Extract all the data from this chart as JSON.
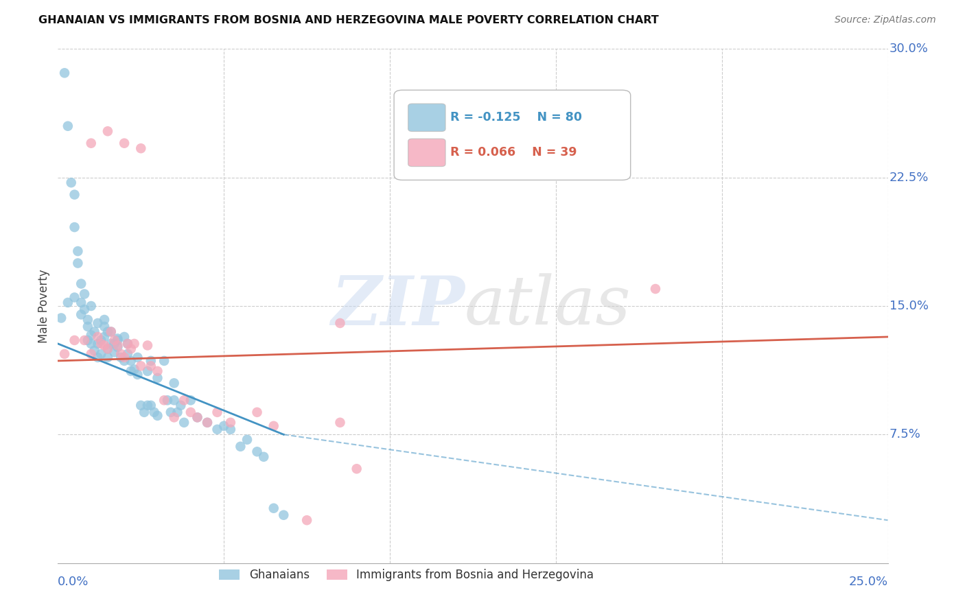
{
  "title": "GHANAIAN VS IMMIGRANTS FROM BOSNIA AND HERZEGOVINA MALE POVERTY CORRELATION CHART",
  "source": "Source: ZipAtlas.com",
  "ylabel": "Male Poverty",
  "xlim": [
    0.0,
    0.25
  ],
  "ylim": [
    0.0,
    0.3
  ],
  "yticks": [
    0.075,
    0.15,
    0.225,
    0.3
  ],
  "ytick_labels": [
    "7.5%",
    "15.0%",
    "22.5%",
    "30.0%"
  ],
  "series1_label": "Ghanaians",
  "series1_R": -0.125,
  "series1_N": 80,
  "series1_color": "#92c5de",
  "series1_line_color": "#4393c3",
  "series2_label": "Immigrants from Bosnia and Herzegovina",
  "series2_R": 0.066,
  "series2_N": 39,
  "series2_color": "#f4a7b9",
  "series2_line_color": "#d6604d",
  "watermark_zip": "ZIP",
  "watermark_atlas": "atlas",
  "background_color": "#ffffff",
  "grid_color": "#cccccc",
  "tick_label_color": "#4472c4",
  "blue_line_solid_end": 0.068,
  "blue_line_start_y": 0.128,
  "blue_line_end_solid_y": 0.075,
  "blue_line_end_dash_y": 0.025,
  "pink_line_start_y": 0.118,
  "pink_line_end_y": 0.132,
  "scatter1_x": [
    0.001,
    0.002,
    0.003,
    0.004,
    0.005,
    0.005,
    0.006,
    0.006,
    0.007,
    0.007,
    0.008,
    0.008,
    0.009,
    0.009,
    0.01,
    0.01,
    0.01,
    0.011,
    0.011,
    0.012,
    0.012,
    0.013,
    0.013,
    0.014,
    0.014,
    0.014,
    0.015,
    0.015,
    0.016,
    0.016,
    0.017,
    0.017,
    0.018,
    0.018,
    0.019,
    0.02,
    0.02,
    0.021,
    0.022,
    0.022,
    0.023,
    0.024,
    0.025,
    0.026,
    0.027,
    0.028,
    0.028,
    0.029,
    0.03,
    0.032,
    0.033,
    0.034,
    0.035,
    0.036,
    0.037,
    0.038,
    0.04,
    0.042,
    0.045,
    0.048,
    0.05,
    0.052,
    0.055,
    0.057,
    0.06,
    0.062,
    0.065,
    0.068,
    0.003,
    0.005,
    0.007,
    0.009,
    0.012,
    0.015,
    0.018,
    0.021,
    0.024,
    0.027,
    0.03,
    0.035
  ],
  "scatter1_y": [
    0.143,
    0.286,
    0.255,
    0.222,
    0.196,
    0.215,
    0.182,
    0.175,
    0.152,
    0.163,
    0.148,
    0.157,
    0.142,
    0.13,
    0.133,
    0.128,
    0.15,
    0.124,
    0.135,
    0.12,
    0.128,
    0.122,
    0.13,
    0.142,
    0.138,
    0.132,
    0.12,
    0.125,
    0.135,
    0.128,
    0.128,
    0.123,
    0.131,
    0.126,
    0.12,
    0.132,
    0.118,
    0.122,
    0.118,
    0.112,
    0.113,
    0.11,
    0.092,
    0.088,
    0.092,
    0.118,
    0.092,
    0.088,
    0.086,
    0.118,
    0.095,
    0.088,
    0.095,
    0.088,
    0.092,
    0.082,
    0.095,
    0.085,
    0.082,
    0.078,
    0.08,
    0.078,
    0.068,
    0.072,
    0.065,
    0.062,
    0.032,
    0.028,
    0.152,
    0.155,
    0.145,
    0.138,
    0.14,
    0.135,
    0.13,
    0.128,
    0.12,
    0.112,
    0.108,
    0.105
  ],
  "scatter2_x": [
    0.002,
    0.005,
    0.008,
    0.01,
    0.012,
    0.013,
    0.014,
    0.015,
    0.016,
    0.017,
    0.018,
    0.019,
    0.02,
    0.021,
    0.022,
    0.023,
    0.025,
    0.027,
    0.028,
    0.03,
    0.032,
    0.035,
    0.038,
    0.04,
    0.042,
    0.045,
    0.048,
    0.052,
    0.06,
    0.065,
    0.075,
    0.085,
    0.09,
    0.01,
    0.015,
    0.02,
    0.025,
    0.18,
    0.085
  ],
  "scatter2_y": [
    0.122,
    0.13,
    0.13,
    0.122,
    0.132,
    0.128,
    0.127,
    0.125,
    0.135,
    0.13,
    0.127,
    0.122,
    0.12,
    0.128,
    0.125,
    0.128,
    0.115,
    0.127,
    0.115,
    0.112,
    0.095,
    0.085,
    0.095,
    0.088,
    0.085,
    0.082,
    0.088,
    0.082,
    0.088,
    0.08,
    0.025,
    0.082,
    0.055,
    0.245,
    0.252,
    0.245,
    0.242,
    0.16,
    0.14
  ]
}
